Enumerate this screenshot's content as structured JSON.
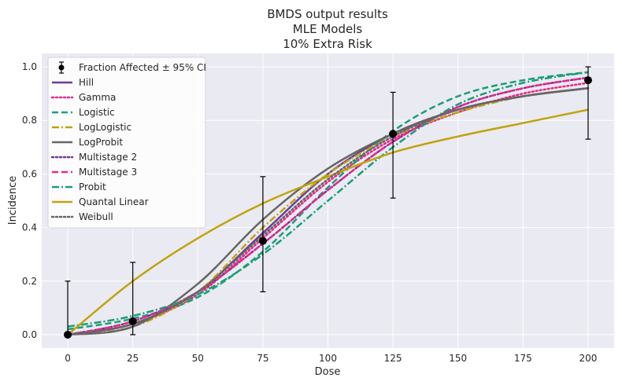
{
  "chart_data": {
    "type": "line",
    "title_lines": [
      "BMDS output results",
      "MLE Models",
      "10% Extra Risk"
    ],
    "xlabel": "Dose",
    "ylabel": "Incidence",
    "xlim": [
      -10,
      210
    ],
    "ylim": [
      -0.05,
      1.05
    ],
    "xticks": [
      0,
      25,
      50,
      75,
      100,
      125,
      150,
      175,
      200
    ],
    "yticks": [
      0.0,
      0.2,
      0.4,
      0.6,
      0.8,
      1.0
    ],
    "xtick_labels": [
      "0",
      "25",
      "50",
      "75",
      "100",
      "125",
      "150",
      "175",
      "200"
    ],
    "ytick_labels": [
      "0.0",
      "0.2",
      "0.4",
      "0.6",
      "0.8",
      "1.0"
    ],
    "grid": true,
    "legend_position": "top-left",
    "observed": {
      "name": "Fraction Affected ± 95% CI",
      "color": "#000000",
      "points": [
        {
          "x": 0,
          "y": 0.0,
          "lower": 0.0,
          "upper": 0.2
        },
        {
          "x": 25,
          "y": 0.05,
          "lower": 0.0,
          "upper": 0.27
        },
        {
          "x": 75,
          "y": 0.35,
          "lower": 0.16,
          "upper": 0.59
        },
        {
          "x": 125,
          "y": 0.75,
          "lower": 0.51,
          "upper": 0.905
        },
        {
          "x": 200,
          "y": 0.95,
          "lower": 0.73,
          "upper": 1.0
        }
      ]
    },
    "series": [
      {
        "name": "Hill",
        "color": "#6a3d9a",
        "dash": "solid",
        "x": [
          0,
          25,
          50,
          75,
          100,
          125,
          150,
          175,
          200
        ],
        "y": [
          0.0,
          0.04,
          0.16,
          0.38,
          0.6,
          0.75,
          0.84,
          0.89,
          0.92
        ]
      },
      {
        "name": "Gamma",
        "color": "#e7298a",
        "dash": "dotted",
        "x": [
          0,
          25,
          50,
          75,
          100,
          125,
          150,
          175,
          200
        ],
        "y": [
          0.0,
          0.04,
          0.15,
          0.36,
          0.57,
          0.73,
          0.83,
          0.9,
          0.94
        ]
      },
      {
        "name": "Logistic",
        "color": "#1b9e77",
        "dash": "dashed",
        "x": [
          0,
          25,
          50,
          75,
          100,
          125,
          150,
          175,
          200
        ],
        "y": [
          0.02,
          0.06,
          0.14,
          0.31,
          0.55,
          0.76,
          0.89,
          0.95,
          0.98
        ]
      },
      {
        "name": "LogLogistic",
        "color": "#bfa40d",
        "dash": "dashdot",
        "x": [
          0,
          25,
          50,
          75,
          100,
          125,
          150,
          175,
          200
        ],
        "y": [
          0.0,
          0.03,
          0.16,
          0.4,
          0.6,
          0.74,
          0.83,
          0.89,
          0.92
        ]
      },
      {
        "name": "LogProbit",
        "color": "#666666",
        "dash": "solid",
        "x": [
          0,
          25,
          50,
          75,
          100,
          125,
          150,
          175,
          200
        ],
        "y": [
          0.0,
          0.03,
          0.19,
          0.43,
          0.62,
          0.75,
          0.84,
          0.89,
          0.92
        ]
      },
      {
        "name": "Multistage 2",
        "color": "#7b3294",
        "dash": "dotted",
        "x": [
          0,
          25,
          50,
          75,
          100,
          125,
          150,
          175,
          200
        ],
        "y": [
          0.0,
          0.05,
          0.16,
          0.34,
          0.54,
          0.72,
          0.85,
          0.92,
          0.96
        ]
      },
      {
        "name": "Multistage 3",
        "color": "#e7298a",
        "dash": "dashed",
        "x": [
          0,
          25,
          50,
          75,
          100,
          125,
          150,
          175,
          200
        ],
        "y": [
          0.0,
          0.05,
          0.16,
          0.34,
          0.54,
          0.72,
          0.85,
          0.92,
          0.96
        ]
      },
      {
        "name": "Probit",
        "color": "#1b9e77",
        "dash": "dashdot",
        "x": [
          0,
          25,
          50,
          75,
          100,
          125,
          150,
          175,
          200
        ],
        "y": [
          0.03,
          0.07,
          0.15,
          0.3,
          0.5,
          0.7,
          0.86,
          0.94,
          0.98
        ]
      },
      {
        "name": "Quantal Linear",
        "color": "#bfa40d",
        "dash": "solid",
        "x": [
          0,
          25,
          50,
          75,
          100,
          125,
          150,
          175,
          200
        ],
        "y": [
          0.0,
          0.2,
          0.36,
          0.49,
          0.59,
          0.68,
          0.74,
          0.79,
          0.84
        ]
      },
      {
        "name": "Weibull",
        "color": "#666666",
        "dash": "dotted",
        "x": [
          0,
          25,
          50,
          75,
          100,
          125,
          150,
          175,
          200
        ],
        "y": [
          0.0,
          0.04,
          0.16,
          0.37,
          0.58,
          0.74,
          0.84,
          0.89,
          0.92
        ]
      }
    ]
  }
}
